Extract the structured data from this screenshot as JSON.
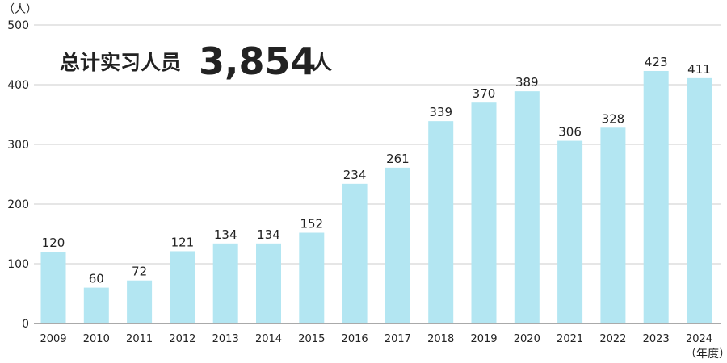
{
  "headline": {
    "label": "总计实习人员",
    "number": "3,854",
    "unit": "人"
  },
  "chart_data": {
    "type": "bar",
    "y_unit_label": "（人）",
    "x_unit_label": "（年度）",
    "categories": [
      "2009",
      "2010",
      "2011",
      "2012",
      "2013",
      "2014",
      "2015",
      "2016",
      "2017",
      "2018",
      "2019",
      "2020",
      "2021",
      "2022",
      "2023",
      "2024"
    ],
    "values": [
      120,
      60,
      72,
      121,
      134,
      134,
      152,
      234,
      261,
      339,
      370,
      389,
      306,
      328,
      423,
      411
    ],
    "ylim": [
      0,
      500
    ],
    "yticks": [
      0,
      100,
      200,
      300,
      400,
      500
    ],
    "grid": true,
    "bar_color": "#b3e6f2",
    "grid_color": "#cccccc"
  }
}
